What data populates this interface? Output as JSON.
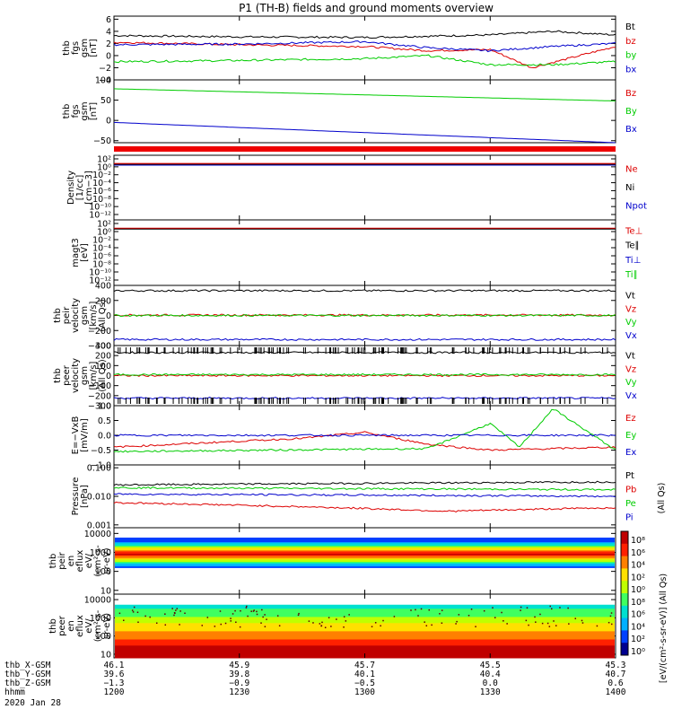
{
  "title": "P1 (TH-B) fields and ground moments overview",
  "panels": [
    {
      "id": "fgs_gse",
      "ylabel": [
        "thb",
        "fgs",
        "gsm",
        "[nT]"
      ],
      "ticks": [
        {
          "v": 6,
          "t": "6"
        },
        {
          "v": 4,
          "t": "4"
        },
        {
          "v": 2,
          "t": "2"
        },
        {
          "v": 0,
          "t": "0"
        },
        {
          "v": -2,
          "t": "−2"
        },
        {
          "v": -4,
          "t": "−4"
        }
      ],
      "ymin": -4,
      "ymax": 6.5,
      "legend": [
        {
          "t": "Bt",
          "c": "#000000"
        },
        {
          "t": "bz",
          "c": "#dd0000"
        },
        {
          "t": "by",
          "c": "#00cc00"
        },
        {
          "t": "bx",
          "c": "#0000cc"
        }
      ]
    },
    {
      "id": "fgs_gsm",
      "ylabel": [
        "thb",
        "fgs",
        "gsm",
        "[nT]"
      ],
      "ticks": [
        {
          "v": 100,
          "t": "100"
        },
        {
          "v": 50,
          "t": "50"
        },
        {
          "v": 0,
          "t": "0"
        },
        {
          "v": -50,
          "t": "−50"
        }
      ],
      "ymin": -55,
      "ymax": 100,
      "legend": [
        {
          "t": "Bz",
          "c": "#dd0000"
        },
        {
          "t": "By",
          "c": "#00cc00"
        },
        {
          "t": "Bx",
          "c": "#0000cc"
        }
      ]
    },
    {
      "id": "density",
      "ylabel": [
        "Density",
        "[1/cc]",
        "[cm−3]"
      ],
      "ticks": [
        {
          "v": 0,
          "t": "10²"
        },
        {
          "v": 1,
          "t": "10⁰"
        },
        {
          "v": 2,
          "t": "10⁻²"
        },
        {
          "v": 3,
          "t": "10⁻⁴"
        },
        {
          "v": 4,
          "t": "10⁻⁶"
        },
        {
          "v": 5,
          "t": "10⁻⁸"
        },
        {
          "v": 6,
          "t": "10⁻¹⁰"
        },
        {
          "v": 7,
          "t": "10⁻¹²"
        }
      ],
      "legend": [
        {
          "t": "Ne",
          "c": "#dd0000"
        },
        {
          "t": "Ni",
          "c": "#000000"
        },
        {
          "t": "Npot",
          "c": "#0000cc"
        }
      ]
    },
    {
      "id": "temp",
      "ylabel": [
        "magt3",
        "[eV]"
      ],
      "ticks": [
        {
          "v": 0,
          "t": "10²"
        },
        {
          "v": 1,
          "t": "10⁰"
        },
        {
          "v": 2,
          "t": "10⁻²"
        },
        {
          "v": 3,
          "t": "10⁻⁴"
        },
        {
          "v": 4,
          "t": "10⁻⁶"
        },
        {
          "v": 5,
          "t": "10⁻⁸"
        },
        {
          "v": 6,
          "t": "10⁻¹⁰"
        },
        {
          "v": 7,
          "t": "10⁻¹²"
        }
      ],
      "legend": [
        {
          "t": "Te⊥",
          "c": "#dd0000"
        },
        {
          "t": "Te∥",
          "c": "#000000"
        },
        {
          "t": "Ti⊥",
          "c": "#0000cc"
        },
        {
          "t": "Ti∥",
          "c": "#00cc00"
        }
      ]
    },
    {
      "id": "peir_vel",
      "ylabel": [
        "thb",
        "peir",
        "velocity",
        "gsm",
        "[km/s]",
        "(All Qs)"
      ],
      "ticks": [
        {
          "v": 400,
          "t": "400"
        },
        {
          "v": 200,
          "t": "200"
        },
        {
          "v": 0,
          "t": "0"
        },
        {
          "v": -200,
          "t": "−200"
        },
        {
          "v": -400,
          "t": "−400"
        }
      ],
      "ymin": -400,
      "ymax": 400,
      "legend": [
        {
          "t": "Vt",
          "c": "#000000"
        },
        {
          "t": "Vz",
          "c": "#dd0000"
        },
        {
          "t": "Vy",
          "c": "#00cc00"
        },
        {
          "t": "Vx",
          "c": "#0000cc"
        }
      ]
    },
    {
      "id": "peer_vel",
      "ylabel": [
        "thb",
        "peer",
        "velocity",
        "gsm",
        "[km/s]",
        "(All Qs)"
      ],
      "ticks": [
        {
          "v": 300,
          "t": "300"
        },
        {
          "v": 200,
          "t": "200"
        },
        {
          "v": 100,
          "t": "100"
        },
        {
          "v": 0,
          "t": "0"
        },
        {
          "v": -100,
          "t": "−100"
        },
        {
          "v": -200,
          "t": "−200"
        },
        {
          "v": -300,
          "t": "−300"
        }
      ],
      "ymin": -300,
      "ymax": 300,
      "legend": [
        {
          "t": "Vt",
          "c": "#000000"
        },
        {
          "t": "Vz",
          "c": "#dd0000"
        },
        {
          "t": "Vy",
          "c": "#00cc00"
        },
        {
          "t": "Vx",
          "c": "#0000cc"
        }
      ]
    },
    {
      "id": "efield",
      "ylabel": [
        "E=−VxB",
        "[mV/m]"
      ],
      "ticks": [
        {
          "v": 1.0,
          "t": "1.0"
        },
        {
          "v": 0.5,
          "t": "0.5"
        },
        {
          "v": 0.0,
          "t": "0.0"
        },
        {
          "v": -0.5,
          "t": "−0.5"
        },
        {
          "v": -1.0,
          "t": "−1.0"
        }
      ],
      "ymin": -1.0,
      "ymax": 1.0,
      "legend": [
        {
          "t": "Ez",
          "c": "#dd0000"
        },
        {
          "t": "Ey",
          "c": "#00cc00"
        },
        {
          "t": "Ex",
          "c": "#0000cc"
        }
      ]
    },
    {
      "id": "pressure",
      "ylabel": [
        "Pressure",
        "[nPa]"
      ],
      "ticks": [
        {
          "v": -1,
          "t": "0.100"
        },
        {
          "v": -2,
          "t": "0.010"
        },
        {
          "v": -3,
          "t": "0.001"
        }
      ],
      "ymin": -3.1,
      "ymax": -0.9,
      "legend": [
        {
          "t": "Pt",
          "c": "#000000"
        },
        {
          "t": "Pb",
          "c": "#dd0000"
        },
        {
          "t": "Pe",
          "c": "#00cc00"
        },
        {
          "t": "Pi",
          "c": "#0000cc"
        }
      ]
    },
    {
      "id": "peir_spec",
      "ylabel": [
        "thb",
        "peir",
        "en",
        "eflux",
        "eV/",
        "(cm²-s-",
        "sr-eV)"
      ],
      "ticks": [
        {
          "v": 4,
          "t": "10000"
        },
        {
          "v": 3,
          "t": "1000"
        },
        {
          "v": 2,
          "t": "100"
        },
        {
          "v": 1,
          "t": "10"
        }
      ],
      "ymin": 0.8,
      "ymax": 4.3
    },
    {
      "id": "peer_spec",
      "ylabel": [
        "thb",
        "peer",
        "en",
        "eflux",
        "eV/",
        "(cm²-s-",
        "sr-eV)"
      ],
      "ticks": [
        {
          "v": 4,
          "t": "10000"
        },
        {
          "v": 3,
          "t": "1000"
        },
        {
          "v": 2,
          "t": "100"
        },
        {
          "v": 1,
          "t": "10"
        }
      ],
      "ymin": 0.8,
      "ymax": 4.3
    }
  ],
  "colorbar": {
    "ticks": [
      "10⁸",
      "10⁶",
      "10⁴",
      "10²",
      "10⁰",
      "10⁸",
      "10⁶",
      "10⁴",
      "10²",
      "10⁰"
    ],
    "label": "[eV/(cm²-s-sr-eV)] (All Qs)"
  },
  "pressure_side_label": "(All Qs)",
  "ephemeris": {
    "row_labels": [
      "thb_X-GSM",
      "thb_Y-GSM",
      "thb_Z-GSM",
      "hhmm",
      "2020 Jan 28"
    ],
    "columns": [
      [
        "46.1",
        "39.6",
        "−1.3",
        "1200"
      ],
      [
        "45.9",
        "39.8",
        "−0.9",
        "1230"
      ],
      [
        "45.7",
        "40.1",
        "−0.5",
        "1300"
      ],
      [
        "45.5",
        "40.4",
        "0.0",
        "1330"
      ],
      [
        "45.3",
        "40.7",
        "0.6",
        "1400"
      ]
    ]
  },
  "chart_data": {
    "type": "line",
    "title": "P1 (TH-B) fields and ground moments overview",
    "x_range": [
      "12:00",
      "14:00"
    ],
    "x_ticks": [
      "1200",
      "1230",
      "1300",
      "1330",
      "1400"
    ],
    "panels": [
      {
        "name": "thb fgs gsm [nT]",
        "ylim": [
          -4,
          6
        ],
        "series": [
          {
            "name": "Bt",
            "x": [
              "12:00",
              "12:30",
              "13:00",
              "13:15",
              "13:30",
              "13:45",
              "14:00"
            ],
            "y": [
              3.3,
              3.1,
              3.0,
              3.2,
              3.4,
              4.0,
              3.4
            ]
          },
          {
            "name": "bz",
            "x": [
              "12:00",
              "12:30",
              "13:00",
              "13:15",
              "13:30",
              "13:40",
              "14:00"
            ],
            "y": [
              2.2,
              1.8,
              1.5,
              0.8,
              1.0,
              -2.0,
              1.5
            ]
          },
          {
            "name": "by",
            "x": [
              "12:00",
              "12:30",
              "13:00",
              "13:15",
              "13:30",
              "13:45",
              "14:00"
            ],
            "y": [
              -1.0,
              -0.8,
              -0.5,
              0.0,
              -1.5,
              -1.5,
              -1.0
            ]
          },
          {
            "name": "bx",
            "x": [
              "12:00",
              "12:30",
              "13:00",
              "13:15",
              "13:30",
              "13:45",
              "14:00"
            ],
            "y": [
              1.8,
              1.9,
              2.3,
              1.3,
              0.8,
              1.5,
              2.0
            ]
          }
        ]
      },
      {
        "name": "thb fgs gsm [nT] (model)",
        "ylim": [
          -55,
          100
        ],
        "series": [
          {
            "name": "By",
            "x": [
              "12:00",
              "14:00"
            ],
            "y": [
              78,
              48
            ]
          },
          {
            "name": "Bx",
            "x": [
              "12:00",
              "14:00"
            ],
            "y": [
              -5,
              -55
            ]
          }
        ]
      },
      {
        "name": "Density [1/cc]",
        "scale": "log",
        "series": [
          {
            "name": "Ne",
            "value": "~1"
          },
          {
            "name": "Ni",
            "value": "~1"
          },
          {
            "name": "Npot",
            "value": "~1"
          }
        ]
      },
      {
        "name": "magt3 [eV]",
        "scale": "log",
        "series": [
          {
            "name": "Te⊥",
            "value": "~100"
          },
          {
            "name": "Te∥",
            "value": "~100"
          }
        ]
      },
      {
        "name": "thb peir velocity gsm [km/s]",
        "ylim": [
          -400,
          400
        ],
        "series": [
          {
            "name": "Vt",
            "x": [
              "12:00",
              "14:00"
            ],
            "y": [
              330,
              330
            ]
          },
          {
            "name": "Vz",
            "x": [
              "12:00",
              "14:00"
            ],
            "y": [
              5,
              5
            ]
          },
          {
            "name": "Vy",
            "x": [
              "12:00",
              "14:00"
            ],
            "y": [
              0,
              0
            ]
          },
          {
            "name": "Vx",
            "x": [
              "12:00",
              "14:00"
            ],
            "y": [
              -320,
              -320
            ]
          }
        ]
      },
      {
        "name": "thb peer velocity gsm [km/s]",
        "ylim": [
          -300,
          300
        ],
        "series": [
          {
            "name": "Vt",
            "x": [
              "12:00",
              "14:00"
            ],
            "y": [
              230,
              230
            ]
          },
          {
            "name": "Vz",
            "x": [
              "12:00",
              "14:00"
            ],
            "y": [
              0,
              0
            ]
          },
          {
            "name": "Vy",
            "x": [
              "12:00",
              "14:00"
            ],
            "y": [
              10,
              10
            ]
          },
          {
            "name": "Vx",
            "x": [
              "12:00",
              "14:00"
            ],
            "y": [
              -225,
              -225
            ]
          }
        ]
      },
      {
        "name": "E=−VxB [mV/m]",
        "ylim": [
          -1,
          1
        ],
        "series": [
          {
            "name": "Ez",
            "x": [
              "12:00",
              "12:45",
              "13:00",
              "13:15",
              "13:30",
              "14:00"
            ],
            "y": [
              -0.4,
              -0.1,
              0.1,
              -0.3,
              -0.5,
              -0.4
            ]
          },
          {
            "name": "Ey",
            "x": [
              "12:00",
              "13:15",
              "13:30",
              "13:37",
              "13:45",
              "14:00"
            ],
            "y": [
              -0.55,
              -0.45,
              0.4,
              -0.4,
              0.9,
              -0.5
            ]
          },
          {
            "name": "Ex",
            "x": [
              "12:00",
              "14:00"
            ],
            "y": [
              0,
              0
            ]
          }
        ]
      },
      {
        "name": "Pressure [nPa]",
        "scale": "log",
        "series": [
          {
            "name": "Pt",
            "x": [
              "12:00",
              "14:00"
            ],
            "y": [
              0.025,
              0.032
            ]
          },
          {
            "name": "Pe",
            "x": [
              "12:00",
              "14:00"
            ],
            "y": [
              0.02,
              0.017
            ]
          },
          {
            "name": "Pi",
            "x": [
              "12:00",
              "14:00"
            ],
            "y": [
              0.012,
              0.01
            ]
          },
          {
            "name": "Pb",
            "x": [
              "12:00",
              "13:20",
              "14:00"
            ],
            "y": [
              0.006,
              0.003,
              0.004
            ]
          }
        ]
      },
      {
        "name": "thb peir en eflux",
        "type": "heatmap",
        "ylim": [
          10,
          10000
        ]
      },
      {
        "name": "thb peer en eflux",
        "type": "heatmap",
        "ylim": [
          10,
          10000
        ]
      }
    ]
  }
}
